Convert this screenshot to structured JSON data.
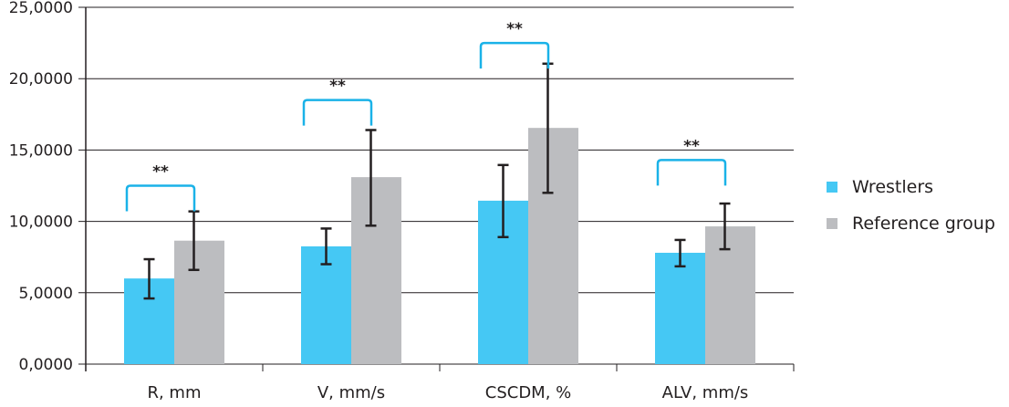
{
  "chart_data": {
    "type": "bar",
    "title": "",
    "xlabel": "",
    "ylabel": "",
    "ylim": [
      0,
      25
    ],
    "yticks": [
      "0,0000",
      "5,0000",
      "10,0000",
      "15,0000",
      "20,0000",
      "25,0000"
    ],
    "ytick_values": [
      0,
      5,
      10,
      15,
      20,
      25
    ],
    "grid": true,
    "legend_position": "right",
    "categories": [
      "R, mm",
      "V, mm/s",
      "CSCDM, %",
      "ALV, mm/s"
    ],
    "series": [
      {
        "name": "Wrestlers",
        "color": "#45c8f4",
        "values": [
          6.0,
          8.25,
          11.45,
          7.8
        ],
        "err_low": [
          4.6,
          7.0,
          8.9,
          6.85
        ],
        "err_high": [
          7.35,
          9.5,
          13.95,
          8.7
        ]
      },
      {
        "name": "Reference group",
        "color": "#bcbdc0",
        "values": [
          8.65,
          13.1,
          16.55,
          9.65
        ],
        "err_low": [
          6.6,
          9.7,
          12.0,
          8.05
        ],
        "err_high": [
          10.7,
          16.4,
          21.05,
          11.25
        ]
      }
    ],
    "annotations": [
      {
        "category": "R, mm",
        "text": "**",
        "bracket_y": 12.5
      },
      {
        "category": "V, mm/s",
        "text": "**",
        "bracket_y": 18.5
      },
      {
        "category": "CSCDM, %",
        "text": "**",
        "bracket_y": 22.5
      },
      {
        "category": "ALV, mm/s",
        "text": "**",
        "bracket_y": 14.3
      }
    ],
    "bracket_color": "#1ab2e8"
  }
}
